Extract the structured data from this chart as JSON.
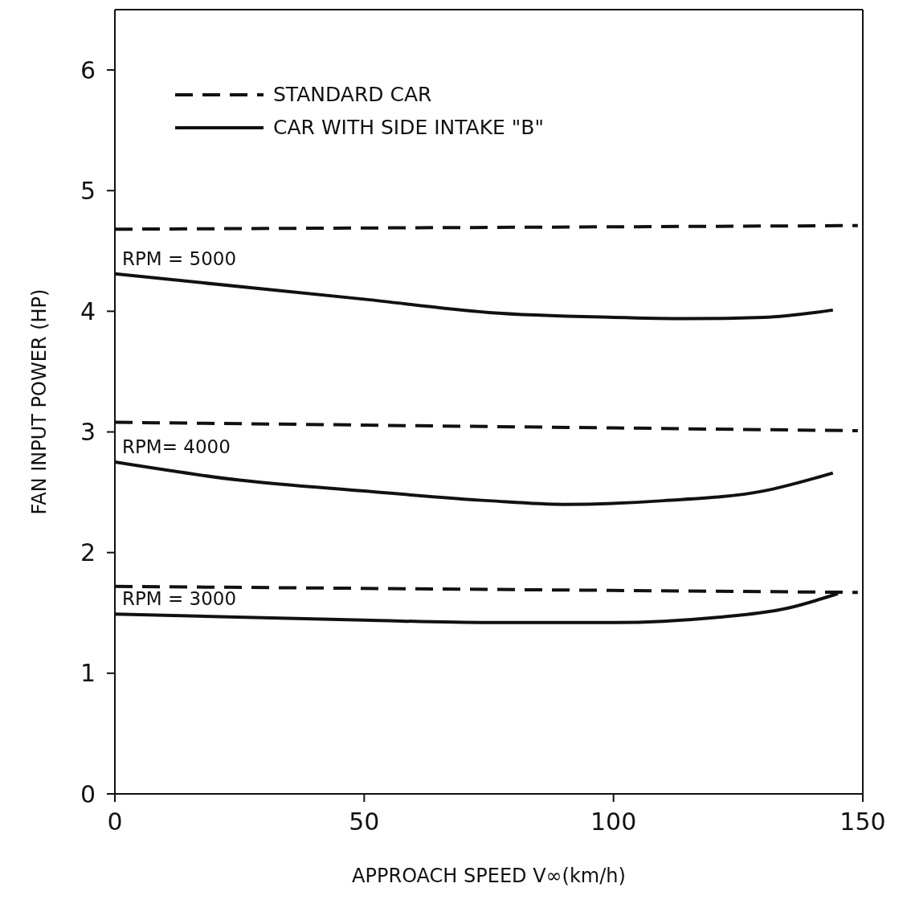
{
  "chart_data": {
    "type": "line",
    "xlabel": "APPROACH SPEED V∞(km/h)",
    "ylabel": "FAN INPUT POWER (HP)",
    "xlim": [
      0,
      150
    ],
    "ylim": [
      0,
      6.5
    ],
    "xticks": [
      0,
      50,
      100,
      150
    ],
    "yticks": [
      0,
      1,
      2,
      3,
      4,
      5,
      6
    ],
    "legend": "top left",
    "marker": "none",
    "series": [
      {
        "name": "STANDARD CAR",
        "color": "#111111",
        "line_style": "dashed",
        "x": [
          0,
          149
        ],
        "values": [
          4.68,
          4.71
        ]
      },
      {
        "name": "CAR WITH SIDE INTAKE \"B\"",
        "color": "#111111",
        "line_style": "solid",
        "x": [
          0,
          50,
          75,
          100,
          115,
          130,
          144
        ],
        "values": [
          4.31,
          4.1,
          3.99,
          3.95,
          3.94,
          3.95,
          4.01
        ]
      },
      {
        "color": "#111111",
        "line_style": "dashed",
        "x": [
          0,
          149
        ],
        "values": [
          3.08,
          3.01
        ]
      },
      {
        "color": "#111111",
        "line_style": "solid",
        "x": [
          0,
          25,
          50,
          75,
          90,
          110,
          130,
          144
        ],
        "values": [
          2.75,
          2.6,
          2.51,
          2.43,
          2.4,
          2.43,
          2.51,
          2.66
        ]
      },
      {
        "color": "#111111",
        "line_style": "dashed",
        "x": [
          0,
          149
        ],
        "values": [
          1.72,
          1.67
        ]
      },
      {
        "color": "#111111",
        "line_style": "solid",
        "x": [
          0,
          50,
          75,
          100,
          120,
          135,
          145
        ],
        "values": [
          1.49,
          1.44,
          1.42,
          1.42,
          1.46,
          1.54,
          1.66
        ]
      }
    ],
    "annotations": [
      "RPM = 5000",
      "RPM= 4000",
      "RPM = 3000"
    ]
  }
}
